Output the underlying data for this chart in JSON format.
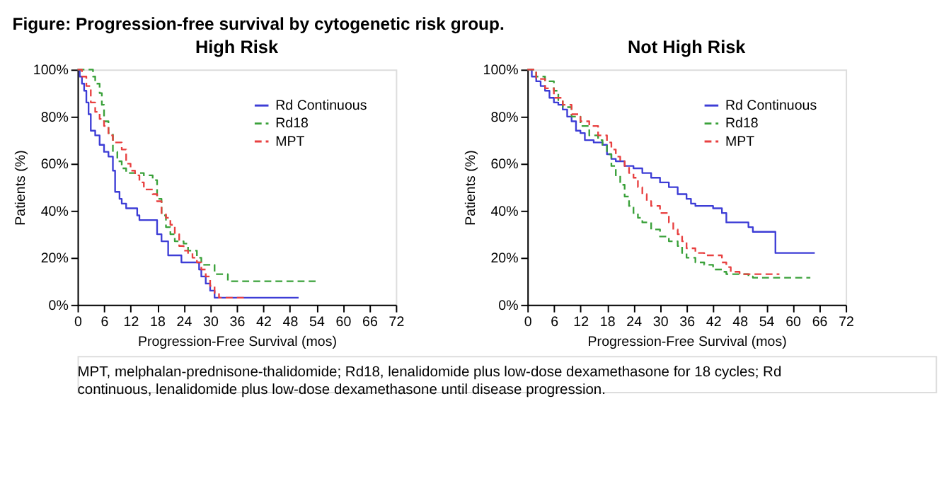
{
  "chart_data": [
    {
      "type": "step",
      "title": "High Risk",
      "xlabel": "Progression-Free Survival (mos)",
      "ylabel": "Patients (%)",
      "annotations": [
        "Figure: Progression-free survival by cytogenetic risk group."
      ],
      "xlim": [
        0,
        72
      ],
      "ylim": [
        0,
        100
      ],
      "xticks": [
        0,
        6,
        12,
        18,
        24,
        30,
        36,
        42,
        48,
        54,
        60,
        66,
        72
      ],
      "yticks": [
        {
          "value": 0,
          "label": "0%"
        },
        {
          "value": 20,
          "label": "20%"
        },
        {
          "value": 40,
          "label": "40%"
        },
        {
          "value": 60,
          "label": "60%"
        },
        {
          "value": 80,
          "label": "80%"
        },
        {
          "value": 100,
          "label": "100%"
        }
      ],
      "grid": false,
      "legend": "top right",
      "marker": "none",
      "series": [
        {
          "name": "Rd Continuous",
          "color": "#3d3dd6",
          "line_style": "solid",
          "x": [
            0,
            0.5,
            1,
            1.5,
            2,
            2.5,
            3,
            4,
            5,
            6,
            7,
            8,
            8.5,
            9.5,
            10,
            11,
            13,
            13.5,
            14,
            17.5,
            18,
            19,
            20,
            20.5,
            23,
            23.5,
            27,
            27.5,
            28,
            29,
            30,
            31,
            50
          ],
          "values": [
            100,
            97,
            94,
            91,
            86,
            81,
            74,
            72,
            68,
            65,
            63,
            57,
            48,
            45,
            43,
            41,
            41,
            38,
            36,
            36,
            30,
            27,
            27,
            21,
            21,
            18,
            18,
            15,
            12,
            9,
            6,
            3,
            3
          ]
        },
        {
          "name": "Rd18",
          "color": "#3aa13a",
          "line_style": "dashed",
          "x": [
            0,
            3,
            3.5,
            4,
            5,
            5.5,
            6,
            7,
            8,
            9,
            10,
            11,
            14,
            15,
            17,
            18,
            19,
            20,
            21,
            22,
            24,
            25,
            27,
            28,
            30,
            31,
            33,
            34,
            54
          ],
          "values": [
            100,
            100,
            97,
            94,
            90,
            85,
            78,
            73,
            65,
            61,
            58,
            56,
            56,
            55,
            53,
            45,
            38,
            33,
            30,
            27,
            26,
            23,
            20,
            17,
            17,
            13,
            13,
            10,
            10
          ]
        },
        {
          "name": "MPT",
          "color": "#e84040",
          "line_style": "dashed",
          "x": [
            0,
            1,
            2,
            3,
            4,
            5,
            6,
            7,
            8,
            9,
            10,
            11,
            12,
            13,
            14,
            15,
            17,
            18,
            19,
            20,
            21,
            22,
            23,
            24,
            25,
            26,
            27,
            28,
            29,
            30,
            31,
            32,
            38
          ],
          "values": [
            100,
            97,
            93,
            86,
            82,
            79,
            76,
            72,
            69,
            69,
            66,
            60,
            57,
            55,
            52,
            49,
            47,
            44,
            39,
            37,
            34,
            30,
            25,
            23,
            22,
            20,
            18,
            15,
            12,
            8,
            5,
            3,
            3
          ]
        }
      ]
    },
    {
      "type": "step",
      "title": "Not High Risk",
      "xlabel": "Progression-Free Survival (mos)",
      "ylabel": "Patients (%)",
      "annotations": [
        "MPT, melphalan-prednisone-thalidomide; Rd18, lenalidomide plus low-dose dexamethasone for 18 cycles; Rd continuous, lenalidomide plus low-dose dexamethasone until disease progression."
      ],
      "xlim": [
        0,
        72
      ],
      "ylim": [
        0,
        100
      ],
      "xticks": [
        0,
        6,
        12,
        18,
        24,
        30,
        36,
        42,
        48,
        54,
        60,
        66,
        72
      ],
      "yticks": [
        {
          "value": 0,
          "label": "0%"
        },
        {
          "value": 20,
          "label": "20%"
        },
        {
          "value": 40,
          "label": "40%"
        },
        {
          "value": 60,
          "label": "60%"
        },
        {
          "value": 80,
          "label": "80%"
        },
        {
          "value": 100,
          "label": "100%"
        }
      ],
      "grid": false,
      "legend": "top right",
      "marker": "none",
      "series": [
        {
          "name": "Rd Continuous",
          "color": "#3d3dd6",
          "line_style": "solid",
          "x": [
            0,
            1,
            2,
            3,
            4,
            5,
            6,
            7,
            8,
            9,
            10,
            11,
            12,
            13,
            15,
            17,
            18,
            19,
            20,
            22,
            24,
            26,
            28,
            30,
            32,
            34,
            36,
            37,
            38,
            42,
            44,
            45,
            48,
            50,
            51,
            56,
            56.1,
            65
          ],
          "values": [
            100,
            97,
            95,
            93,
            91,
            88,
            86,
            85,
            83,
            80,
            78,
            74,
            73,
            70,
            69,
            68,
            64,
            62,
            61,
            59,
            58,
            56,
            54,
            52,
            50,
            47,
            45,
            43,
            42,
            41,
            39,
            35,
            35,
            33,
            31,
            31,
            22,
            22
          ]
        },
        {
          "name": "Rd18",
          "color": "#3aa13a",
          "line_style": "dashed",
          "x": [
            0,
            2,
            4,
            6,
            7,
            8,
            10,
            12,
            14,
            16,
            17,
            18,
            19,
            20,
            21,
            22,
            23,
            24,
            25,
            26,
            28,
            30,
            32,
            34,
            35,
            36,
            38,
            40,
            42,
            44,
            45,
            50,
            51,
            64
          ],
          "values": [
            100,
            97,
            95,
            91,
            87,
            84,
            80,
            76,
            72,
            70,
            68,
            64,
            59,
            55,
            51,
            46,
            42,
            39,
            37,
            35,
            32,
            29,
            27,
            25,
            22,
            20,
            18,
            17,
            15,
            14,
            13,
            12,
            11.5,
            11.5
          ]
        },
        {
          "name": "MPT",
          "color": "#e84040",
          "line_style": "dashed",
          "x": [
            0,
            2,
            4,
            6,
            8,
            10,
            12,
            14,
            16,
            18,
            19,
            20,
            21,
            22,
            23,
            24,
            25,
            26,
            27,
            28,
            30,
            32,
            33,
            34,
            35,
            36,
            38,
            40,
            43,
            44,
            45,
            46,
            48,
            57
          ],
          "values": [
            100,
            96,
            92,
            88,
            85,
            81,
            78,
            76,
            72,
            69,
            66,
            63,
            61,
            59,
            56,
            54,
            50,
            47,
            44,
            42,
            39,
            35,
            32,
            30,
            27,
            24,
            22,
            21,
            21,
            18,
            16,
            14,
            13,
            13
          ]
        }
      ]
    }
  ]
}
